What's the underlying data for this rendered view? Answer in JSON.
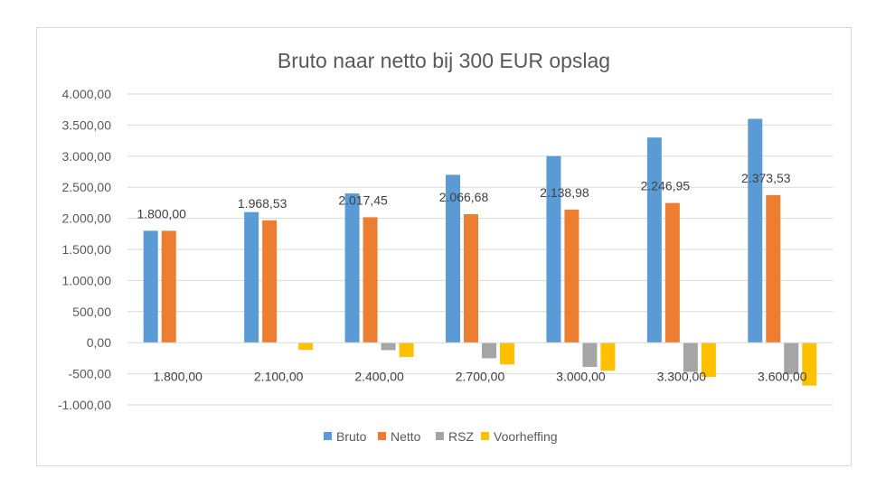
{
  "chart_data": {
    "type": "bar",
    "title": "Bruto naar netto bij 300 EUR opslag",
    "categories": [
      "1.800,00",
      "2.100,00",
      "2.400,00",
      "2.700,00",
      "3.000,00",
      "3.300,00",
      "3.600,00"
    ],
    "series": [
      {
        "name": "Bruto",
        "color": "#5b9bd5",
        "values": [
          1800,
          2100,
          2400,
          2700,
          3000,
          3300,
          3600
        ]
      },
      {
        "name": "Netto",
        "color": "#ed7d31",
        "values": [
          1800,
          1968.53,
          2017.45,
          2066.68,
          2138.98,
          2246.95,
          2373.53
        ]
      },
      {
        "name": "RSZ",
        "color": "#a5a5a5",
        "values": [
          0,
          0,
          -120,
          -250,
          -390,
          -470,
          -510
        ]
      },
      {
        "name": "Voorheffing",
        "color": "#ffc000",
        "values": [
          0,
          -115,
          -230,
          -350,
          -450,
          -550,
          -690
        ]
      }
    ],
    "data_labels": [
      "1.800,00",
      "1.968,53",
      "2.017,45",
      "2.066,68",
      "2.138,98",
      "2.246,95",
      "2.373,53"
    ],
    "yticks": [
      "4.000,00",
      "3.500,00",
      "3.000,00",
      "2.500,00",
      "2.000,00",
      "1.500,00",
      "1.000,00",
      "500,00",
      "0,00",
      "-500,00",
      "-1.000,00"
    ],
    "ylim": [
      -1000,
      4000
    ],
    "grid": true,
    "legend_position": "bottom"
  }
}
